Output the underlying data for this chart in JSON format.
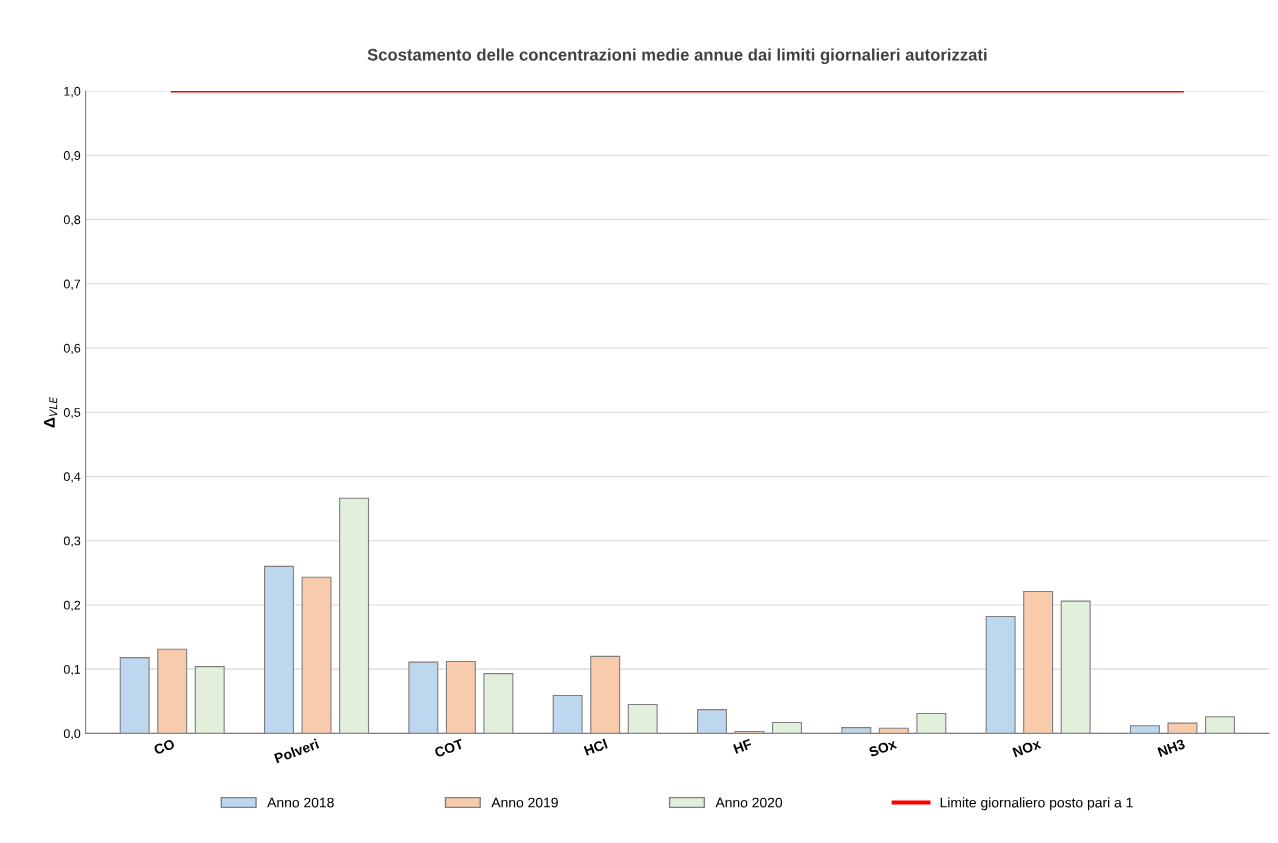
{
  "chart_data": {
    "type": "bar",
    "title": "Scostamento delle concentrazioni medie annue dai limiti giornalieri autorizzati",
    "ylabel": "Δ$_{VLE}$",
    "categories": [
      "CO",
      "Polveri",
      "COT",
      "HCl",
      "HF",
      "SOx",
      "NOx",
      "NH3"
    ],
    "series": [
      {
        "name": "Anno 2018",
        "color": "#bdd7ee",
        "values": [
          0.118,
          0.26,
          0.111,
          0.059,
          0.037,
          0.009,
          0.182,
          0.012
        ]
      },
      {
        "name": "Anno 2019",
        "color": "#f8cbad",
        "values": [
          0.131,
          0.243,
          0.112,
          0.12,
          0.003,
          0.008,
          0.221,
          0.016
        ]
      },
      {
        "name": "Anno 2020",
        "color": "#e2efda",
        "values": [
          0.104,
          0.366,
          0.093,
          0.045,
          0.017,
          0.031,
          0.206,
          0.026
        ]
      },
      {
        "name": "Limite giornaliero posto pari a 1",
        "color": "#ff0000",
        "type": "line",
        "values": [
          1,
          1,
          1,
          1,
          1,
          1,
          1,
          1
        ]
      }
    ],
    "ylim": [
      0,
      1
    ],
    "yticks": [
      {
        "value": 0,
        "label": "0,0"
      },
      {
        "value": 0.1,
        "label": "0,1"
      },
      {
        "value": 0.2,
        "label": "0,2"
      },
      {
        "value": 0.3,
        "label": "0,3"
      },
      {
        "value": 0.4,
        "label": "0,4"
      },
      {
        "value": 0.5,
        "label": "0,5"
      },
      {
        "value": 0.6,
        "label": "0,6"
      },
      {
        "value": 0.7,
        "label": "0,7"
      },
      {
        "value": 0.8,
        "label": "0,8"
      },
      {
        "value": 0.9,
        "label": "0,9"
      },
      {
        "value": 1,
        "label": "1,0"
      }
    ],
    "grid": "y",
    "legend": "bottom"
  }
}
